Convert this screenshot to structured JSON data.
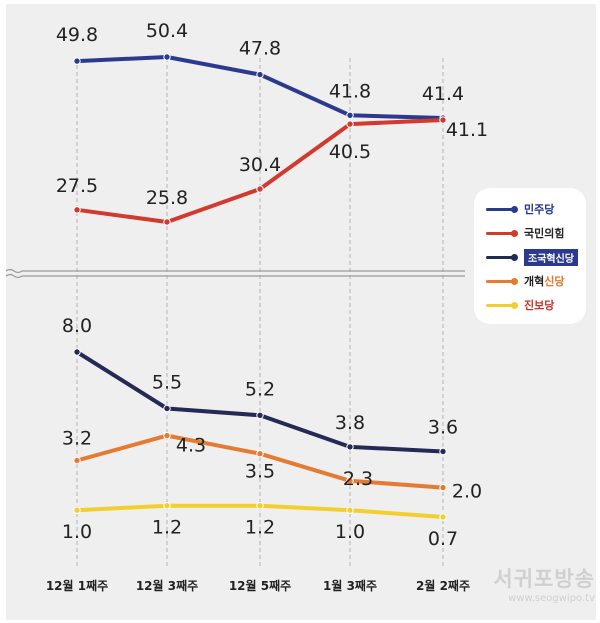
{
  "chart_data": {
    "type": "line",
    "categories": [
      "12월 1째주",
      "12월 3째주",
      "12월 5째주",
      "1월 3째주",
      "2월 2째주"
    ],
    "series": [
      {
        "name": "민주당",
        "color": "#2b3a8f",
        "panel": "top",
        "values": [
          49.8,
          50.4,
          47.8,
          41.8,
          41.4
        ],
        "labels": [
          "49.8",
          "50.4",
          "47.8",
          "41.8",
          "41.4"
        ]
      },
      {
        "name": "국민의힘",
        "color": "#d2392f",
        "panel": "top",
        "values": [
          27.5,
          25.8,
          30.4,
          40.5,
          41.1
        ],
        "labels": [
          "27.5",
          "25.8",
          "30.4",
          "40.5",
          "41.1"
        ]
      },
      {
        "name": "조국혁신당",
        "color": "#252a55",
        "panel": "bottom",
        "values": [
          8.0,
          5.5,
          5.2,
          3.8,
          3.6
        ],
        "labels": [
          "8.0",
          "5.5",
          "5.2",
          "3.8",
          "3.6"
        ]
      },
      {
        "name": "개혁신당",
        "color": "#e47b32",
        "panel": "bottom",
        "values": [
          3.2,
          4.3,
          3.5,
          2.3,
          2.0
        ],
        "labels": [
          "3.2",
          "4.3",
          "3.5",
          "2.3",
          "2.0"
        ]
      },
      {
        "name": "진보당",
        "color": "#f2cf2e",
        "panel": "bottom",
        "values": [
          1.0,
          1.2,
          1.2,
          1.0,
          0.7
        ],
        "labels": [
          "1.0",
          "1.2",
          "1.2",
          "1.0",
          "0.7"
        ]
      }
    ],
    "axis_break": true,
    "grid": "vertical dashed",
    "legend_position": "right"
  },
  "legend": {
    "items": [
      {
        "label": "민주당",
        "color": "#2b3a8f"
      },
      {
        "label": "국민의힘",
        "color": "#d2392f"
      },
      {
        "label": "조국혁신당",
        "color": "#252a55"
      },
      {
        "label_main": "개혁",
        "label_accent": "신당",
        "color": "#e47b32"
      },
      {
        "label": "진보당",
        "color": "#f2cf2e"
      }
    ]
  },
  "watermark": {
    "name": "서귀포방송",
    "url": "www.seogwipo.tv"
  }
}
